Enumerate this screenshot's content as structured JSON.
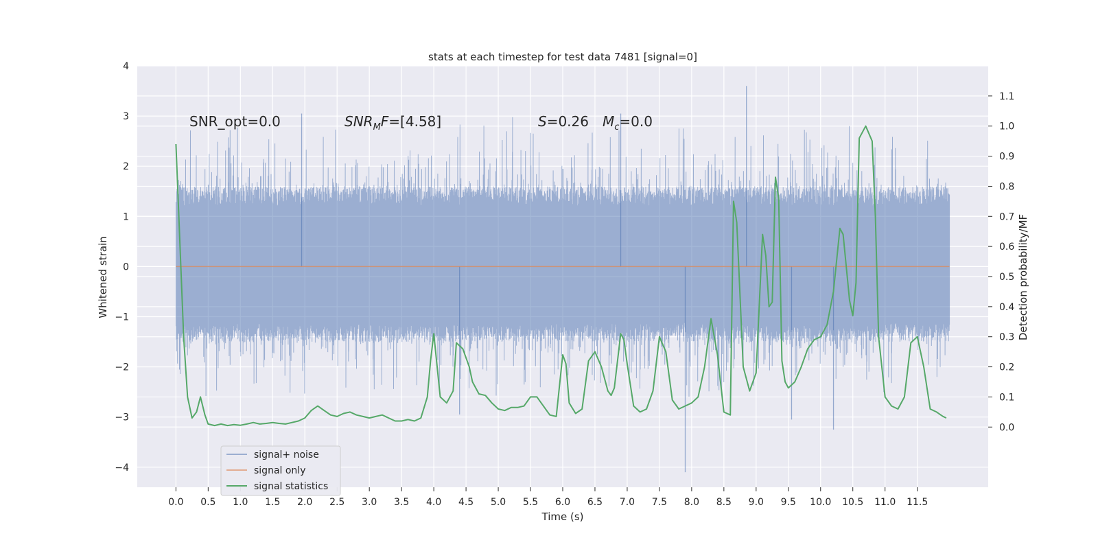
{
  "chart_data": {
    "type": "line",
    "title": "stats at each timestep for test data 7481 [signal=0]",
    "xlabel": "Time (s)",
    "ylabel": "Whitened strain",
    "y2label": "Detection probability/MF",
    "xlim": [
      -0.6,
      12.6
    ],
    "ylim": [
      -4.4,
      4.0
    ],
    "y2lim": [
      -0.2,
      1.2
    ],
    "x_ticks": [
      0.0,
      0.5,
      1.0,
      1.5,
      2.0,
      2.5,
      3.0,
      3.5,
      4.0,
      4.5,
      5.0,
      5.5,
      6.0,
      6.5,
      7.0,
      7.5,
      8.0,
      8.5,
      9.0,
      9.5,
      10.0,
      10.5,
      11.0,
      11.5
    ],
    "x_tick_labels": [
      "0.0",
      "0.5",
      "1.0",
      "1.5",
      "2.0",
      "2.5",
      "3.0",
      "3.5",
      "4.0",
      "4.5",
      "5.0",
      "5.5",
      "6.0",
      "6.5",
      "7.0",
      "7.5",
      "8.0",
      "8.5",
      "9.0",
      "9.5",
      "10.0",
      "10.5",
      "11.0",
      "11.5"
    ],
    "y_ticks": [
      4,
      3,
      2,
      1,
      0,
      -1,
      -2,
      -3,
      -4
    ],
    "y_tick_labels": [
      "4",
      "3",
      "2",
      "1",
      "0",
      "−1",
      "−2",
      "−3",
      "−4"
    ],
    "y2_ticks": [
      1.1,
      1.0,
      0.9,
      0.8,
      0.7,
      0.6,
      0.5,
      0.4,
      0.3,
      0.2,
      0.1,
      0.0
    ],
    "y2_tick_labels": [
      "1.1",
      "1.0",
      "0.9",
      "0.8",
      "0.7",
      "0.6",
      "0.5",
      "0.4",
      "0.3",
      "0.2",
      "0.1",
      "0.0"
    ],
    "legend_position": "lower-left",
    "annotations": {
      "snr_opt": "SNR_opt=0.0",
      "snr_mf": "=[4.58]",
      "s_val": "=0.26",
      "mc_val": "=0.0"
    },
    "noise_band": {
      "x_range": [
        0.0,
        12.0
      ],
      "core_range": [
        -1.5,
        1.6
      ],
      "spike_range": [
        -4.1,
        3.6
      ]
    },
    "series": [
      {
        "name": "signal+ noise",
        "color": "#4c72b0",
        "axis": "left",
        "note": "dense whitened noise trace over full duration"
      },
      {
        "name": "signal only",
        "color": "#dd8452",
        "axis": "left",
        "x": [
          0.0,
          12.0
        ],
        "y": [
          0.0,
          0.0
        ]
      },
      {
        "name": "signal statistics",
        "color": "#55a868",
        "axis": "right",
        "x": [
          0.0,
          0.12,
          0.18,
          0.25,
          0.32,
          0.38,
          0.45,
          0.5,
          0.6,
          0.7,
          0.8,
          0.9,
          1.0,
          1.1,
          1.2,
          1.3,
          1.4,
          1.5,
          1.6,
          1.7,
          1.8,
          1.9,
          2.0,
          2.1,
          2.2,
          2.3,
          2.4,
          2.5,
          2.6,
          2.7,
          2.8,
          2.9,
          3.0,
          3.1,
          3.2,
          3.3,
          3.4,
          3.5,
          3.6,
          3.7,
          3.8,
          3.9,
          3.95,
          4.0,
          4.1,
          4.2,
          4.3,
          4.35,
          4.45,
          4.55,
          4.6,
          4.7,
          4.8,
          4.9,
          5.0,
          5.1,
          5.2,
          5.3,
          5.4,
          5.5,
          5.6,
          5.7,
          5.8,
          5.9,
          6.0,
          6.05,
          6.1,
          6.2,
          6.3,
          6.4,
          6.5,
          6.6,
          6.7,
          6.75,
          6.8,
          6.9,
          6.95,
          7.0,
          7.1,
          7.2,
          7.3,
          7.4,
          7.5,
          7.6,
          7.7,
          7.8,
          7.9,
          8.0,
          8.1,
          8.2,
          8.3,
          8.4,
          8.5,
          8.6,
          8.65,
          8.7,
          8.8,
          8.9,
          9.0,
          9.1,
          9.15,
          9.2,
          9.25,
          9.3,
          9.35,
          9.4,
          9.45,
          9.5,
          9.6,
          9.7,
          9.8,
          9.9,
          10.0,
          10.1,
          10.2,
          10.3,
          10.35,
          10.45,
          10.5,
          10.55,
          10.6,
          10.7,
          10.8,
          10.85,
          10.9,
          11.0,
          11.1,
          11.2,
          11.3,
          11.4,
          11.5,
          11.6,
          11.7,
          11.8,
          11.9,
          11.95
        ],
        "y": [
          0.94,
          0.3,
          0.1,
          0.03,
          0.05,
          0.1,
          0.04,
          0.01,
          0.005,
          0.01,
          0.005,
          0.008,
          0.006,
          0.01,
          0.015,
          0.01,
          0.012,
          0.015,
          0.012,
          0.01,
          0.015,
          0.02,
          0.03,
          0.055,
          0.07,
          0.055,
          0.04,
          0.035,
          0.045,
          0.05,
          0.04,
          0.035,
          0.03,
          0.035,
          0.04,
          0.03,
          0.02,
          0.02,
          0.025,
          0.02,
          0.03,
          0.1,
          0.22,
          0.31,
          0.1,
          0.08,
          0.12,
          0.28,
          0.26,
          0.2,
          0.15,
          0.11,
          0.105,
          0.08,
          0.06,
          0.055,
          0.065,
          0.065,
          0.07,
          0.1,
          0.1,
          0.07,
          0.04,
          0.035,
          0.24,
          0.21,
          0.08,
          0.045,
          0.06,
          0.22,
          0.25,
          0.2,
          0.12,
          0.105,
          0.13,
          0.31,
          0.29,
          0.21,
          0.07,
          0.05,
          0.06,
          0.12,
          0.3,
          0.25,
          0.09,
          0.06,
          0.07,
          0.08,
          0.1,
          0.2,
          0.36,
          0.24,
          0.05,
          0.04,
          0.75,
          0.68,
          0.2,
          0.12,
          0.18,
          0.64,
          0.57,
          0.4,
          0.415,
          0.83,
          0.76,
          0.22,
          0.15,
          0.13,
          0.15,
          0.2,
          0.26,
          0.29,
          0.3,
          0.34,
          0.45,
          0.66,
          0.64,
          0.42,
          0.37,
          0.48,
          0.96,
          1.0,
          0.95,
          0.7,
          0.3,
          0.1,
          0.07,
          0.06,
          0.1,
          0.28,
          0.3,
          0.2,
          0.06,
          0.05,
          0.035,
          0.03
        ]
      }
    ]
  }
}
